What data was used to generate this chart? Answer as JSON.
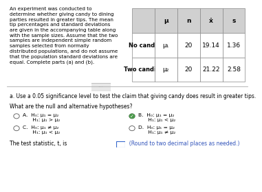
{
  "bg_color": "#f0f0f0",
  "text_color": "#000000",
  "intro_text": "An experiment was conducted to\ndetermine whether giving candy to dining\nparties resulted in greater tips. The mean\ntip percentages and standard deviations\nare given in the accompanying table along\nwith the sample sizes. Assume that the two\nsamples are independent simple random\nsamples selected from normally\ndistributed populations, and do not assume\nthat the population standard deviations are\nequal. Complete parts (a) and (b).",
  "table": {
    "headers": [
      "",
      "μ",
      "n",
      "ẋ",
      "s"
    ],
    "rows": [
      [
        "No candy",
        "μ₁",
        "20",
        "19.14",
        "1.36"
      ],
      [
        "Two candies",
        "μ₂",
        "20",
        "21.22",
        "2.58"
      ]
    ]
  },
  "part_a_text": "a. Use a 0.05 significance level to test the claim that giving candy does result in greater tips.",
  "hyp_question": "What are the null and alternative hypotheses?",
  "options": {
    "A": {
      "H0": "H₀: μ₁ = μ₂",
      "H1": "H₁: μ₁ > μ₂",
      "selected": false
    },
    "B": {
      "H0": "H₀: μ₁ = μ₂",
      "H1": "H₁: μ₁ < μ₂",
      "selected": true
    },
    "C": {
      "H0": "H₀: μ₁ ≠ μ₂",
      "H1": "H₁: μ₁ < μ₂",
      "selected": false
    },
    "D": {
      "H0": "H₀: μ₁ = μ₂",
      "H1": "H₁: μ₁ ≠ μ₂",
      "selected": false
    }
  },
  "test_stat_text": "The test statistic, t, is",
  "round_text": "(Round to two decimal places as needed.)"
}
